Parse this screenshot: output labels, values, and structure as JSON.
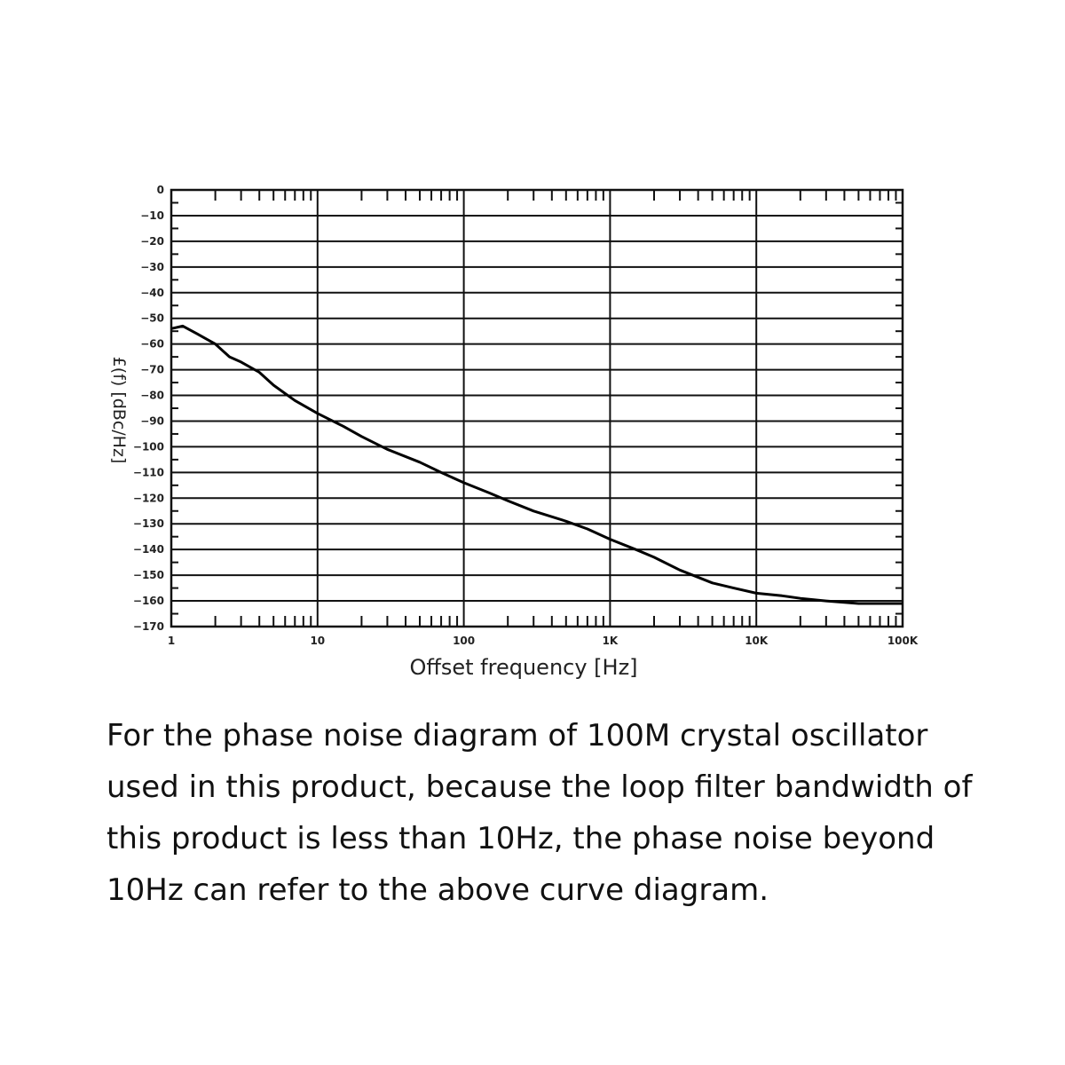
{
  "chart_data": {
    "type": "line",
    "title": "",
    "xlabel": "Offset frequency [Hz]",
    "ylabel": "£(f) [dBc/Hz]",
    "x_scale": "log",
    "xlim": [
      1,
      100000
    ],
    "ylim": [
      -170,
      0
    ],
    "x_ticks": [
      {
        "value": 1,
        "label": "1"
      },
      {
        "value": 10,
        "label": "10"
      },
      {
        "value": 100,
        "label": "100"
      },
      {
        "value": 1000,
        "label": "1K"
      },
      {
        "value": 10000,
        "label": "10K"
      },
      {
        "value": 100000,
        "label": "100K"
      }
    ],
    "y_ticks": [
      0,
      -10,
      -20,
      -30,
      -40,
      -50,
      -60,
      -70,
      -80,
      -90,
      -100,
      -110,
      -120,
      -130,
      -140,
      -150,
      -160,
      -170
    ],
    "grid": true,
    "series": [
      {
        "x": [
          1,
          1.2,
          1.5,
          2,
          2.5,
          3,
          4,
          5,
          7,
          10,
          15,
          20,
          30,
          50,
          70,
          100,
          150,
          200,
          300,
          500,
          700,
          1000,
          1500,
          2000,
          3000,
          5000,
          7000,
          10000,
          15000,
          20000,
          30000,
          50000,
          70000,
          100000
        ],
        "y": [
          -54,
          -53,
          -56,
          -60,
          -65,
          -67,
          -71,
          -76,
          -82,
          -87,
          -92,
          -96,
          -101,
          -106,
          -110,
          -114,
          -118,
          -121,
          -125,
          -129,
          -132,
          -136,
          -140,
          -143,
          -148,
          -153,
          -155,
          -157,
          -158,
          -159,
          -160,
          -161,
          -161,
          -161
        ]
      }
    ]
  },
  "caption": {
    "lines": [
      "For the phase noise diagram of 100M crystal oscillator",
      "used in this product, because the loop filter bandwidth of",
      "this product is less than 10Hz, the phase noise beyond",
      "10Hz can refer to the above curve diagram."
    ]
  }
}
